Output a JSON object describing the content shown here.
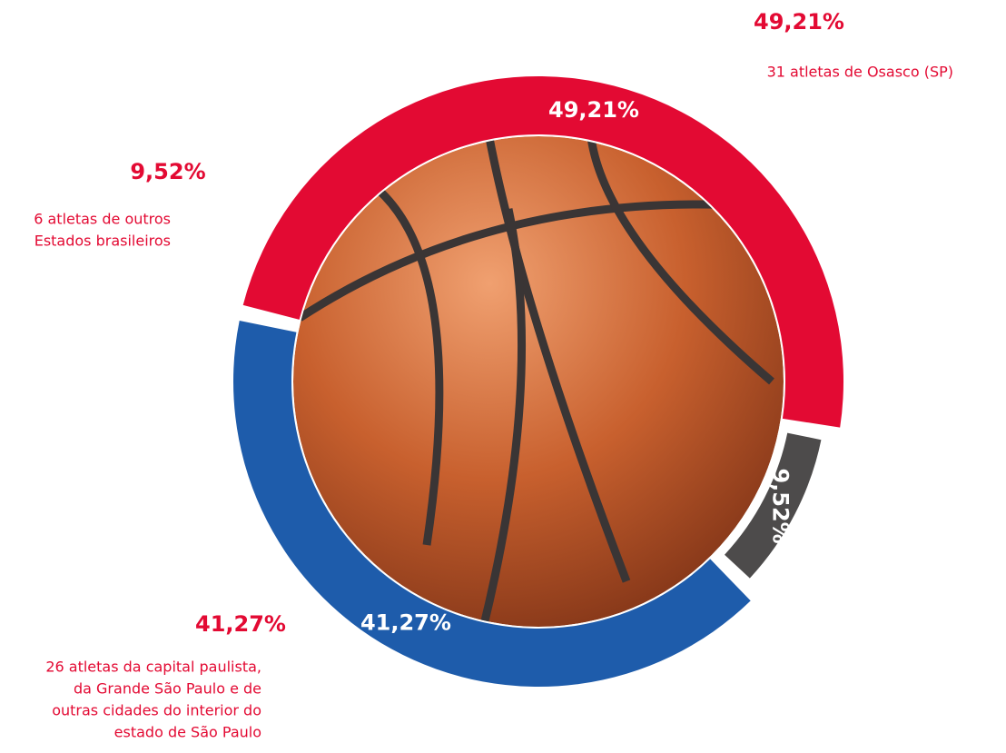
{
  "chart_data": {
    "type": "donut",
    "categories": [
      "Osasco (SP)",
      "Outros Estados",
      "Capital, Grande São Paulo e interior"
    ],
    "values": [
      49.21,
      9.52,
      41.27
    ],
    "value_labels": [
      "49,21%",
      "9,52%",
      "41,27%"
    ],
    "colors": [
      "#e30a33",
      "#4d4b4b",
      "#1e5cab"
    ],
    "descriptions": [
      [
        "31 atletas de Osasco (SP)"
      ],
      [
        "6 atletas de outros",
        "Estados brasileiros"
      ],
      [
        "26 atletas da capital paulista,",
        "da Grande São Paulo e de",
        "outras cidades do interior  do",
        "estado de São Paulo"
      ]
    ]
  }
}
